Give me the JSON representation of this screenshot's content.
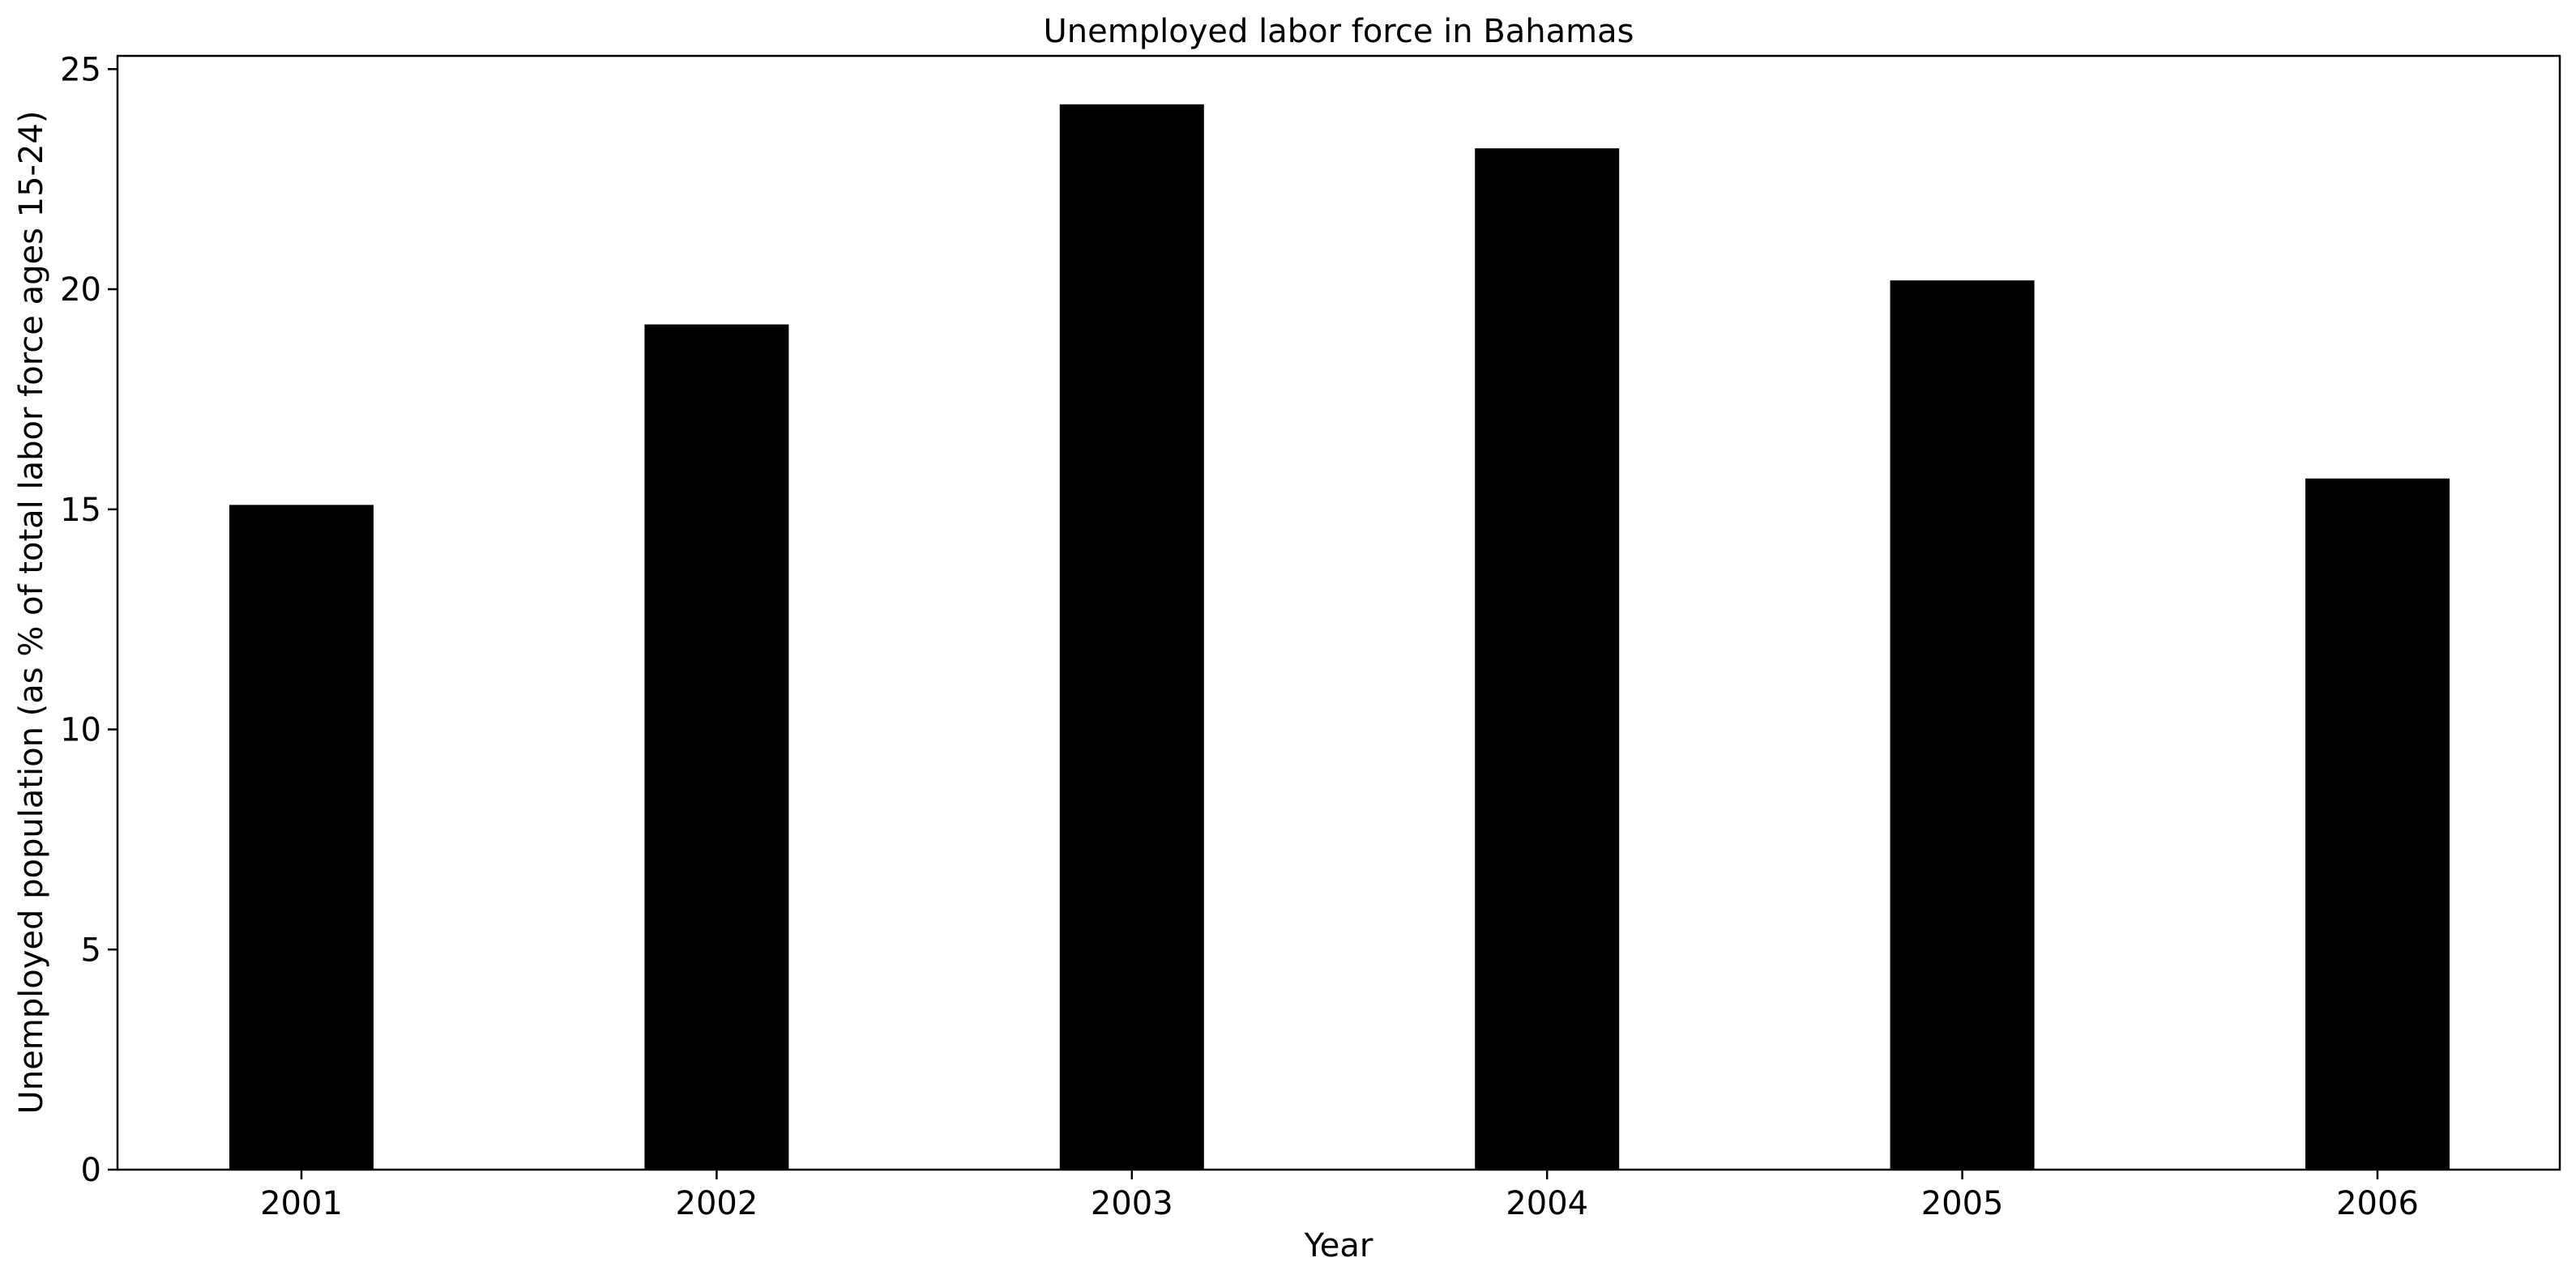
{
  "chart_data": {
    "type": "bar",
    "title": "Unemployed labor force in Bahamas",
    "xlabel": "Year",
    "ylabel": "Unemployed population (as % of total labor force ages 15-24)",
    "categories": [
      "2001",
      "2002",
      "2003",
      "2004",
      "2005",
      "2006"
    ],
    "values": [
      15.1,
      19.2,
      24.2,
      23.2,
      20.2,
      15.7
    ],
    "ylim": [
      0,
      25.3
    ],
    "yticks": [
      0,
      5,
      10,
      15,
      20,
      25
    ],
    "bar_color": "#000000",
    "grid": false,
    "legend": "none"
  }
}
